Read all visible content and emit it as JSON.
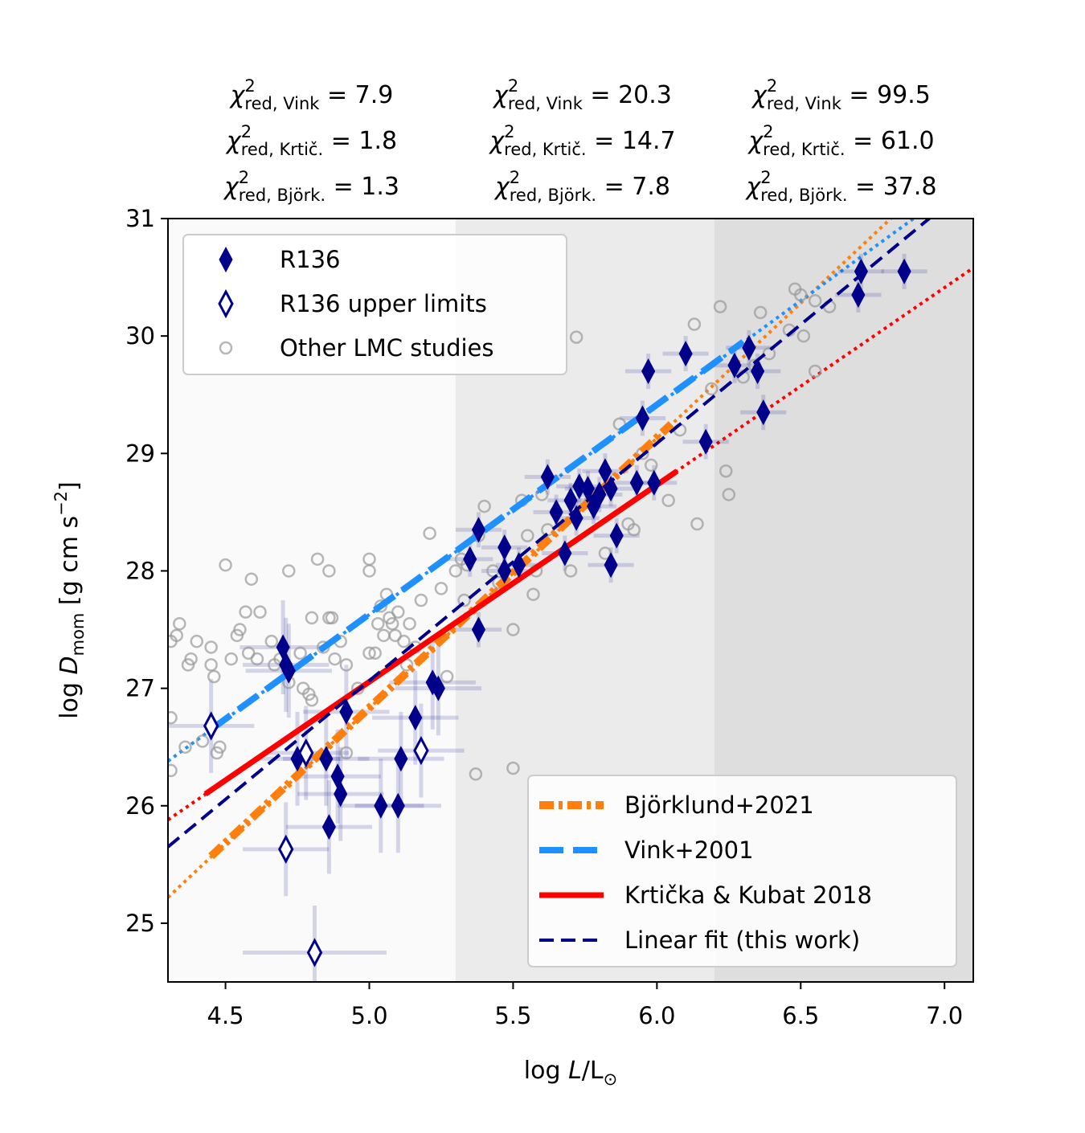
{
  "chart_data": {
    "type": "scatter",
    "annotations": [
      {
        "symbol": "χ",
        "sup": "2",
        "sub": "red, Vink",
        "rest": " = 7.9"
      },
      {
        "symbol": "χ",
        "sup": "2",
        "sub": "red, Krtič.",
        "rest": " = 1.8"
      },
      {
        "symbol": "χ",
        "sup": "2",
        "sub": "red, Björk.",
        "rest": " = 1.3"
      },
      {
        "symbol": "χ",
        "sup": "2",
        "sub": "red, Vink",
        "rest": " = 20.3"
      },
      {
        "symbol": "χ",
        "sup": "2",
        "sub": "red, Krtič.",
        "rest": " = 14.7"
      },
      {
        "symbol": "χ",
        "sup": "2",
        "sub": "red, Björk.",
        "rest": " = 7.8"
      },
      {
        "symbol": "χ",
        "sup": "2",
        "sub": "red, Vink",
        "rest": " = 99.5"
      },
      {
        "symbol": "χ",
        "sup": "2",
        "sub": "red, Krtič.",
        "rest": " = 61.0"
      },
      {
        "symbol": "χ",
        "sup": "2",
        "sub": "red, Björk.",
        "rest": " = 37.8"
      }
    ],
    "x_label": {
      "pre": "log ",
      "var": "L",
      "mid": "/L",
      "sub": "⊙"
    },
    "y_label": {
      "pre": "log ",
      "var": "D",
      "sub": "mom",
      "mid": " [g cm s",
      "sup": "−2",
      "end": "]"
    },
    "xlim": [
      4.3,
      7.1
    ],
    "ylim": [
      24.5,
      31
    ],
    "xticks": [
      4.5,
      {
        "value": 5,
        "label": "5.0"
      },
      5.5,
      {
        "value": 6,
        "label": "6.0"
      },
      6.5,
      {
        "value": 7,
        "label": "7.0"
      }
    ],
    "yticks": [
      25,
      26,
      27,
      28,
      29,
      30,
      31
    ],
    "regions": [
      {
        "xlim": [
          4.3,
          5.3
        ],
        "color": "#fafafa"
      },
      {
        "xlim": [
          5.3,
          6.2
        ],
        "color": "#ebebeb"
      },
      {
        "xlim": [
          6.2,
          7.1
        ],
        "color": "#dedede"
      }
    ],
    "legend": "upper left",
    "lines_legend": "lower right",
    "series": [
      {
        "name": "R136",
        "color": "#00008b",
        "marker": "diamond",
        "filled": true,
        "x": [
          4.7,
          4.71,
          4.72,
          4.75,
          4.85,
          4.86,
          4.89,
          4.9,
          4.92,
          5.04,
          5.1,
          5.11,
          5.16,
          5.22,
          5.24,
          5.35,
          5.38,
          5.38,
          5.47,
          5.47,
          5.52,
          5.62,
          5.65,
          5.68,
          5.7,
          5.72,
          5.73,
          5.76,
          5.78,
          5.8,
          5.82,
          5.84,
          5.84,
          5.86,
          5.93,
          5.95,
          5.97,
          5.99,
          6.1,
          6.17,
          6.27,
          6.32,
          6.35,
          6.37,
          6.7,
          6.71,
          6.86
        ],
        "values": [
          27.35,
          27.2,
          27.15,
          26.4,
          26.4,
          25.82,
          26.25,
          26.1,
          26.8,
          26.0,
          26.0,
          26.4,
          26.75,
          27.05,
          27.0,
          28.1,
          28.35,
          27.5,
          28.2,
          28.0,
          28.05,
          28.8,
          28.5,
          28.15,
          28.6,
          28.45,
          28.72,
          28.7,
          28.55,
          28.65,
          28.85,
          28.7,
          28.05,
          28.3,
          28.75,
          29.3,
          29.7,
          28.75,
          29.85,
          29.1,
          29.75,
          29.9,
          29.7,
          29.35,
          30.35,
          30.55,
          30.55
        ],
        "xerr": [
          0.15,
          0.15,
          0.15,
          0.15,
          0.15,
          0.15,
          0.15,
          0.15,
          0.15,
          0.15,
          0.15,
          0.15,
          0.15,
          0.15,
          0.15,
          0.08,
          0.08,
          0.08,
          0.08,
          0.08,
          0.08,
          0.08,
          0.08,
          0.08,
          0.08,
          0.08,
          0.08,
          0.08,
          0.08,
          0.08,
          0.08,
          0.08,
          0.08,
          0.08,
          0.08,
          0.08,
          0.08,
          0.08,
          0.08,
          0.08,
          0.08,
          0.08,
          0.08,
          0.08,
          0.08,
          0.08,
          0.08
        ],
        "yerr": [
          0.4,
          0.4,
          0.4,
          0.4,
          0.4,
          0.4,
          0.4,
          0.4,
          0.4,
          0.4,
          0.4,
          0.4,
          0.4,
          0.4,
          0.4,
          0.15,
          0.15,
          0.15,
          0.15,
          0.15,
          0.15,
          0.15,
          0.15,
          0.15,
          0.15,
          0.15,
          0.15,
          0.15,
          0.15,
          0.15,
          0.15,
          0.15,
          0.15,
          0.15,
          0.15,
          0.15,
          0.15,
          0.15,
          0.15,
          0.15,
          0.15,
          0.15,
          0.15,
          0.15,
          0.15,
          0.15,
          0.15
        ]
      },
      {
        "name": "R136 upper limits",
        "color": "#00008b",
        "marker": "diamond",
        "filled": false,
        "x": [
          4.45,
          4.71,
          4.78,
          4.81,
          5.18
        ],
        "values": [
          26.68,
          25.63,
          26.45,
          24.75,
          26.47
        ],
        "xerr": [
          0.15,
          0.15,
          0.15,
          0.25,
          0.15
        ],
        "yerr": [
          0.4,
          0.4,
          0.4,
          0.4,
          0.4
        ]
      },
      {
        "name": "Other LMC studies",
        "color": "#999999",
        "marker": "circle",
        "filled": false,
        "x": [
          4.31,
          4.33,
          4.34,
          4.37,
          4.38,
          4.4,
          4.31,
          4.31,
          4.36,
          4.42,
          4.45,
          4.45,
          4.46,
          4.47,
          4.48,
          4.5,
          4.52,
          4.54,
          4.55,
          4.57,
          4.58,
          4.59,
          4.61,
          4.62,
          4.66,
          4.67,
          4.69,
          4.72,
          4.72,
          4.76,
          4.77,
          4.79,
          4.8,
          4.8,
          4.82,
          4.84,
          4.86,
          4.86,
          4.87,
          4.88,
          4.9,
          4.92,
          4.92,
          4.96,
          5.0,
          5.0,
          5.0,
          5.02,
          5.03,
          5.04,
          5.05,
          5.06,
          5.07,
          5.08,
          5.09,
          5.1,
          5.12,
          5.13,
          5.14,
          5.16,
          5.18,
          5.21,
          5.25,
          5.27,
          5.3,
          5.32,
          5.33,
          5.34,
          5.37,
          5.38,
          5.4,
          5.43,
          5.45,
          5.5,
          5.5,
          5.53,
          5.55,
          5.57,
          5.58,
          5.6,
          5.62,
          5.65,
          5.7,
          5.72,
          5.77,
          5.82,
          5.87,
          5.9,
          5.92,
          5.95,
          5.98,
          6.04,
          6.08,
          6.13,
          6.14,
          6.19,
          6.22,
          6.24,
          6.25,
          6.3,
          6.34,
          6.36,
          6.39,
          6.46,
          6.48,
          6.5,
          6.51,
          6.55,
          6.55,
          6.6
        ],
        "values": [
          27.4,
          27.45,
          27.55,
          27.2,
          27.25,
          27.4,
          26.75,
          26.3,
          26.5,
          26.55,
          27.35,
          27.2,
          27.1,
          26.45,
          26.5,
          28.05,
          27.25,
          27.45,
          27.5,
          27.65,
          27.3,
          27.93,
          27.25,
          27.65,
          27.4,
          27.2,
          27.25,
          28.0,
          27.05,
          27.3,
          27.0,
          26.95,
          26.9,
          27.6,
          28.1,
          27.35,
          28.0,
          27.6,
          27.6,
          27.25,
          27.4,
          27.2,
          26.45,
          27.0,
          28.1,
          28.0,
          27.3,
          27.3,
          27.55,
          27.7,
          27.45,
          27.8,
          27.6,
          27.55,
          27.45,
          27.65,
          27.4,
          27.2,
          27.55,
          27.35,
          27.75,
          28.32,
          27.85,
          27.1,
          28.0,
          28.1,
          27.75,
          28.05,
          26.27,
          28.3,
          28.55,
          28.0,
          27.9,
          27.5,
          26.32,
          28.6,
          28.3,
          27.8,
          28.0,
          28.65,
          28.35,
          28.5,
          28.0,
          29.99,
          28.6,
          28.15,
          29.25,
          28.4,
          28.35,
          29.0,
          28.9,
          28.6,
          29.2,
          30.1,
          28.4,
          29.55,
          30.25,
          28.85,
          28.65,
          29.65,
          29.75,
          30.2,
          29.85,
          30.05,
          30.4,
          30.35,
          30.0,
          30.3,
          29.7,
          30.25
        ]
      }
    ],
    "lines": [
      {
        "name": "Björklund+2021",
        "color": "#ff7f0e",
        "style": "dashdot",
        "x": [
          4.45,
          6.05
        ],
        "values": [
          25.57,
          29.25
        ],
        "extrapolation": {
          "x": [
            4.3,
            7.1
          ],
          "values": [
            25.22,
            31.66
          ]
        }
      },
      {
        "name": "Vink+2001",
        "color": "#1e90ff",
        "style": "dashed",
        "x": [
          4.45,
          6.3
        ],
        "values": [
          26.65,
          29.95
        ],
        "extrapolation": {
          "x": [
            4.3,
            7.1
          ],
          "values": [
            26.38,
            31.37
          ]
        }
      },
      {
        "name": "Krtička & Kubat 2018",
        "color": "#ff0000",
        "style": "solid",
        "x": [
          4.43,
          6.07
        ],
        "values": [
          26.1,
          28.85
        ],
        "extrapolation": {
          "x": [
            4.3,
            7.1
          ],
          "values": [
            25.88,
            30.58
          ]
        }
      },
      {
        "name": "Linear fit (this work)",
        "color": "#00008b",
        "style": "thin-dashed",
        "x": [
          4.3,
          7.1
        ],
        "values": [
          25.65,
          31.31
        ]
      }
    ]
  }
}
